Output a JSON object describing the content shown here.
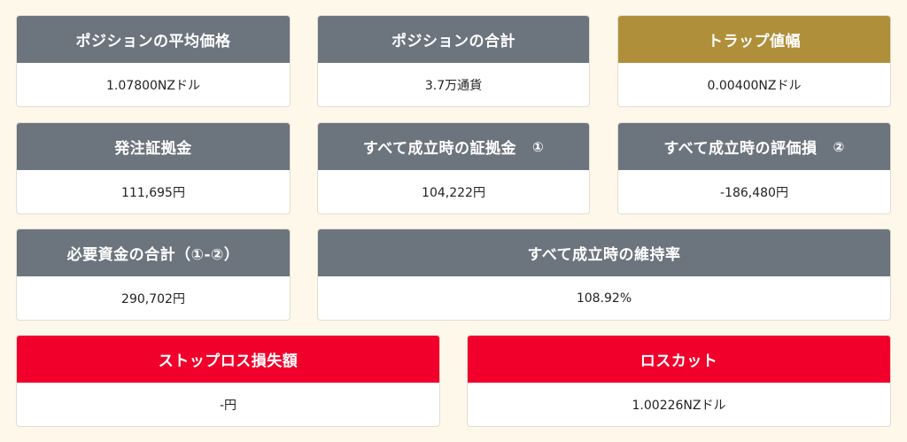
{
  "colors": {
    "background": "#fdf8ea",
    "header_gray": "#6c747d",
    "header_gold": "#b08f3b",
    "header_red": "#f0002b"
  },
  "cards": {
    "avg_price": {
      "title": "ポジションの平均価格",
      "value": "1.07800NZドル"
    },
    "total_position": {
      "title": "ポジションの合計",
      "value": "3.7万通貨"
    },
    "trap_range": {
      "title": "トラップ値幅",
      "value": "0.00400NZドル"
    },
    "order_margin": {
      "title": "発注証拠金",
      "value": "111,695円"
    },
    "margin_all": {
      "title": "すべて成立時の証拠金",
      "marker": "①",
      "value": "104,222円"
    },
    "valuation_loss": {
      "title": "すべて成立時の評価損",
      "marker": "②",
      "value": "-186,480円"
    },
    "required_funds": {
      "title": "必要資金の合計（①-②）",
      "value": "290,702円"
    },
    "maintenance": {
      "title": "すべて成立時の維持率",
      "value": "108.92%"
    },
    "stop_loss": {
      "title": "ストップロス損失額",
      "value": "-円"
    },
    "loss_cut": {
      "title": "ロスカット",
      "value": "1.00226NZドル"
    }
  }
}
